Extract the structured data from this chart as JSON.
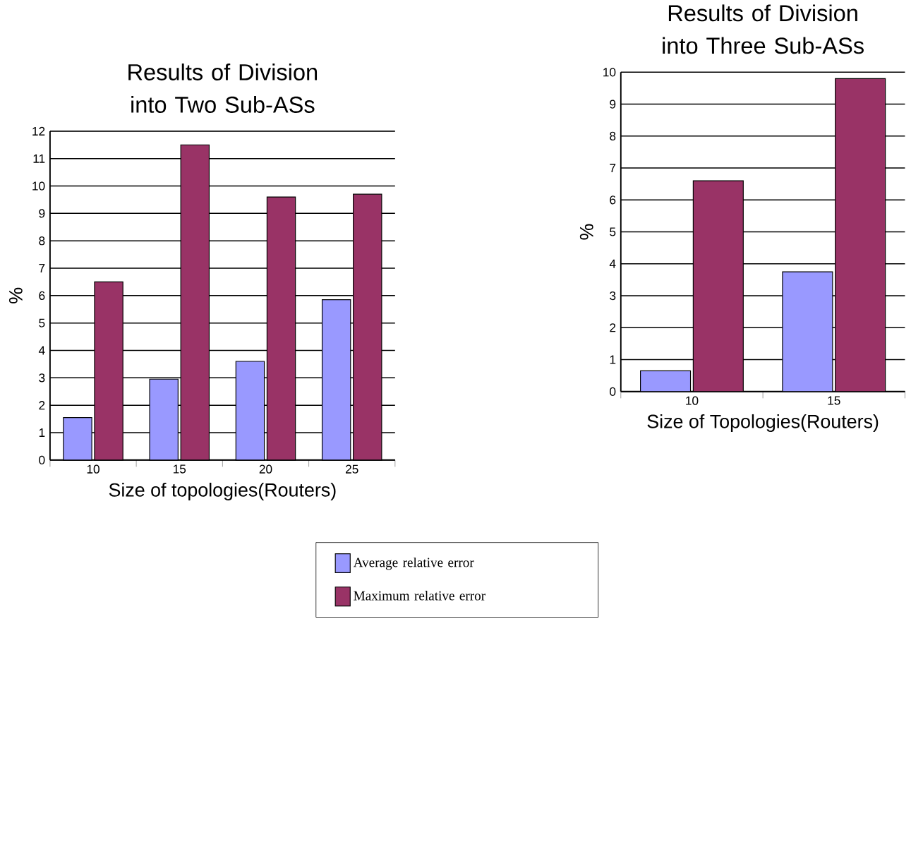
{
  "chart_data": [
    {
      "type": "bar",
      "title": "Results of Division into Two Sub-ASs",
      "xlabel": "Size of topologies(Routers)",
      "ylabel": "%",
      "categories": [
        "10",
        "15",
        "20",
        "25"
      ],
      "series": [
        {
          "name": "Average relative error",
          "color": "#9999ff",
          "values": [
            1.55,
            2.95,
            3.6,
            5.85
          ]
        },
        {
          "name": "Maximum relative error",
          "color": "#993366",
          "values": [
            6.5,
            11.5,
            9.6,
            9.7
          ]
        }
      ],
      "ylim": [
        0,
        12
      ],
      "yticks": [
        0,
        1,
        2,
        3,
        4,
        5,
        6,
        7,
        8,
        9,
        10,
        11,
        12
      ],
      "grid": "y",
      "legend": "bottom"
    },
    {
      "type": "bar",
      "title": "Results of Division into Three Sub-ASs",
      "xlabel": "Size of Topologies(Routers)",
      "ylabel": "%",
      "categories": [
        "10",
        "15"
      ],
      "series": [
        {
          "color": "#9999ff",
          "values": [
            0.65,
            3.75
          ]
        },
        {
          "color": "#993366",
          "values": [
            6.6,
            9.8
          ]
        }
      ],
      "ylim": [
        0,
        10
      ],
      "yticks": [
        0,
        1,
        2,
        3,
        4,
        5,
        6,
        7,
        8,
        9,
        10
      ],
      "grid": "y"
    }
  ]
}
